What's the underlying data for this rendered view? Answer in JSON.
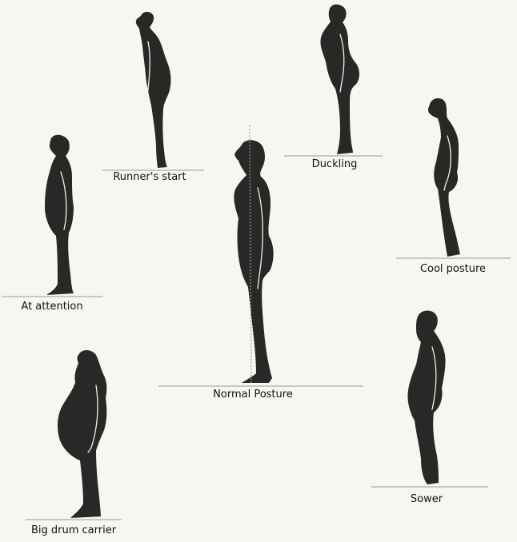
{
  "postures": [
    {
      "id": "runners-start",
      "label": "Runner's start"
    },
    {
      "id": "duckling",
      "label": "Duckling"
    },
    {
      "id": "cool-posture",
      "label": "Cool posture"
    },
    {
      "id": "at-attention",
      "label": "At attention"
    },
    {
      "id": "normal-posture",
      "label": "Normal Posture"
    },
    {
      "id": "sower",
      "label": "Sower"
    },
    {
      "id": "big-drum-carrier",
      "label": "Big drum carrier"
    }
  ],
  "colors": {
    "silhouette": "#2a2826",
    "background": "#f7f6f1",
    "plumb_line": "#9a9893"
  },
  "icons": {
    "plumb_line": "plumb-line-icon"
  }
}
